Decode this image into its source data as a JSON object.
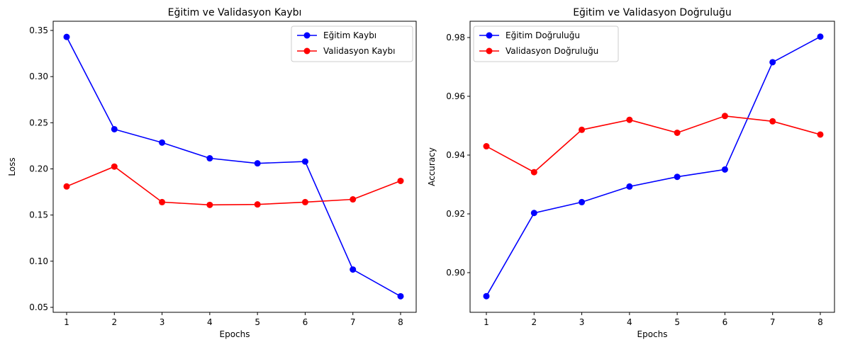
{
  "chart_data": [
    {
      "type": "line",
      "title": "Eğitim ve Validasyon Kaybı",
      "xlabel": "Epochs",
      "ylabel": "Loss",
      "x": [
        1,
        2,
        3,
        4,
        5,
        6,
        7,
        8
      ],
      "xticks": [
        "1",
        "2",
        "3",
        "4",
        "5",
        "6",
        "7",
        "8"
      ],
      "yticks": [
        "0.05",
        "0.10",
        "0.15",
        "0.20",
        "0.25",
        "0.30",
        "0.35"
      ],
      "ylim": [
        0.05,
        0.35
      ],
      "grid": false,
      "legend": "top-right",
      "series": [
        {
          "name": "Eğitim Kaybı",
          "color": "#0000ff",
          "marker": "circle",
          "values": [
            0.343,
            0.243,
            0.2285,
            0.2115,
            0.206,
            0.208,
            0.091,
            0.062
          ]
        },
        {
          "name": "Validasyon Kaybı",
          "color": "#ff0000",
          "marker": "circle",
          "values": [
            0.181,
            0.2025,
            0.164,
            0.161,
            0.1615,
            0.164,
            0.167,
            0.187
          ]
        }
      ]
    },
    {
      "type": "line",
      "title": "Eğitim ve Validasyon Doğruluğu",
      "xlabel": "Epochs",
      "ylabel": "Accuracy",
      "x": [
        1,
        2,
        3,
        4,
        5,
        6,
        7,
        8
      ],
      "xticks": [
        "1",
        "2",
        "3",
        "4",
        "5",
        "6",
        "7",
        "8"
      ],
      "yticks": [
        "0.90",
        "0.92",
        "0.94",
        "0.96",
        "0.98"
      ],
      "ylim": [
        0.9,
        0.98
      ],
      "grid": false,
      "legend": "top-left",
      "series": [
        {
          "name": "Eğitim Doğruluğu",
          "color": "#0000ff",
          "marker": "circle",
          "values": [
            0.892,
            0.9203,
            0.924,
            0.9293,
            0.9326,
            0.9351,
            0.9716,
            0.9803
          ]
        },
        {
          "name": "Validasyon Doğruluğu",
          "color": "#ff0000",
          "marker": "circle",
          "values": [
            0.943,
            0.9342,
            0.9486,
            0.952,
            0.9476,
            0.9533,
            0.9515,
            0.947
          ]
        }
      ]
    }
  ]
}
